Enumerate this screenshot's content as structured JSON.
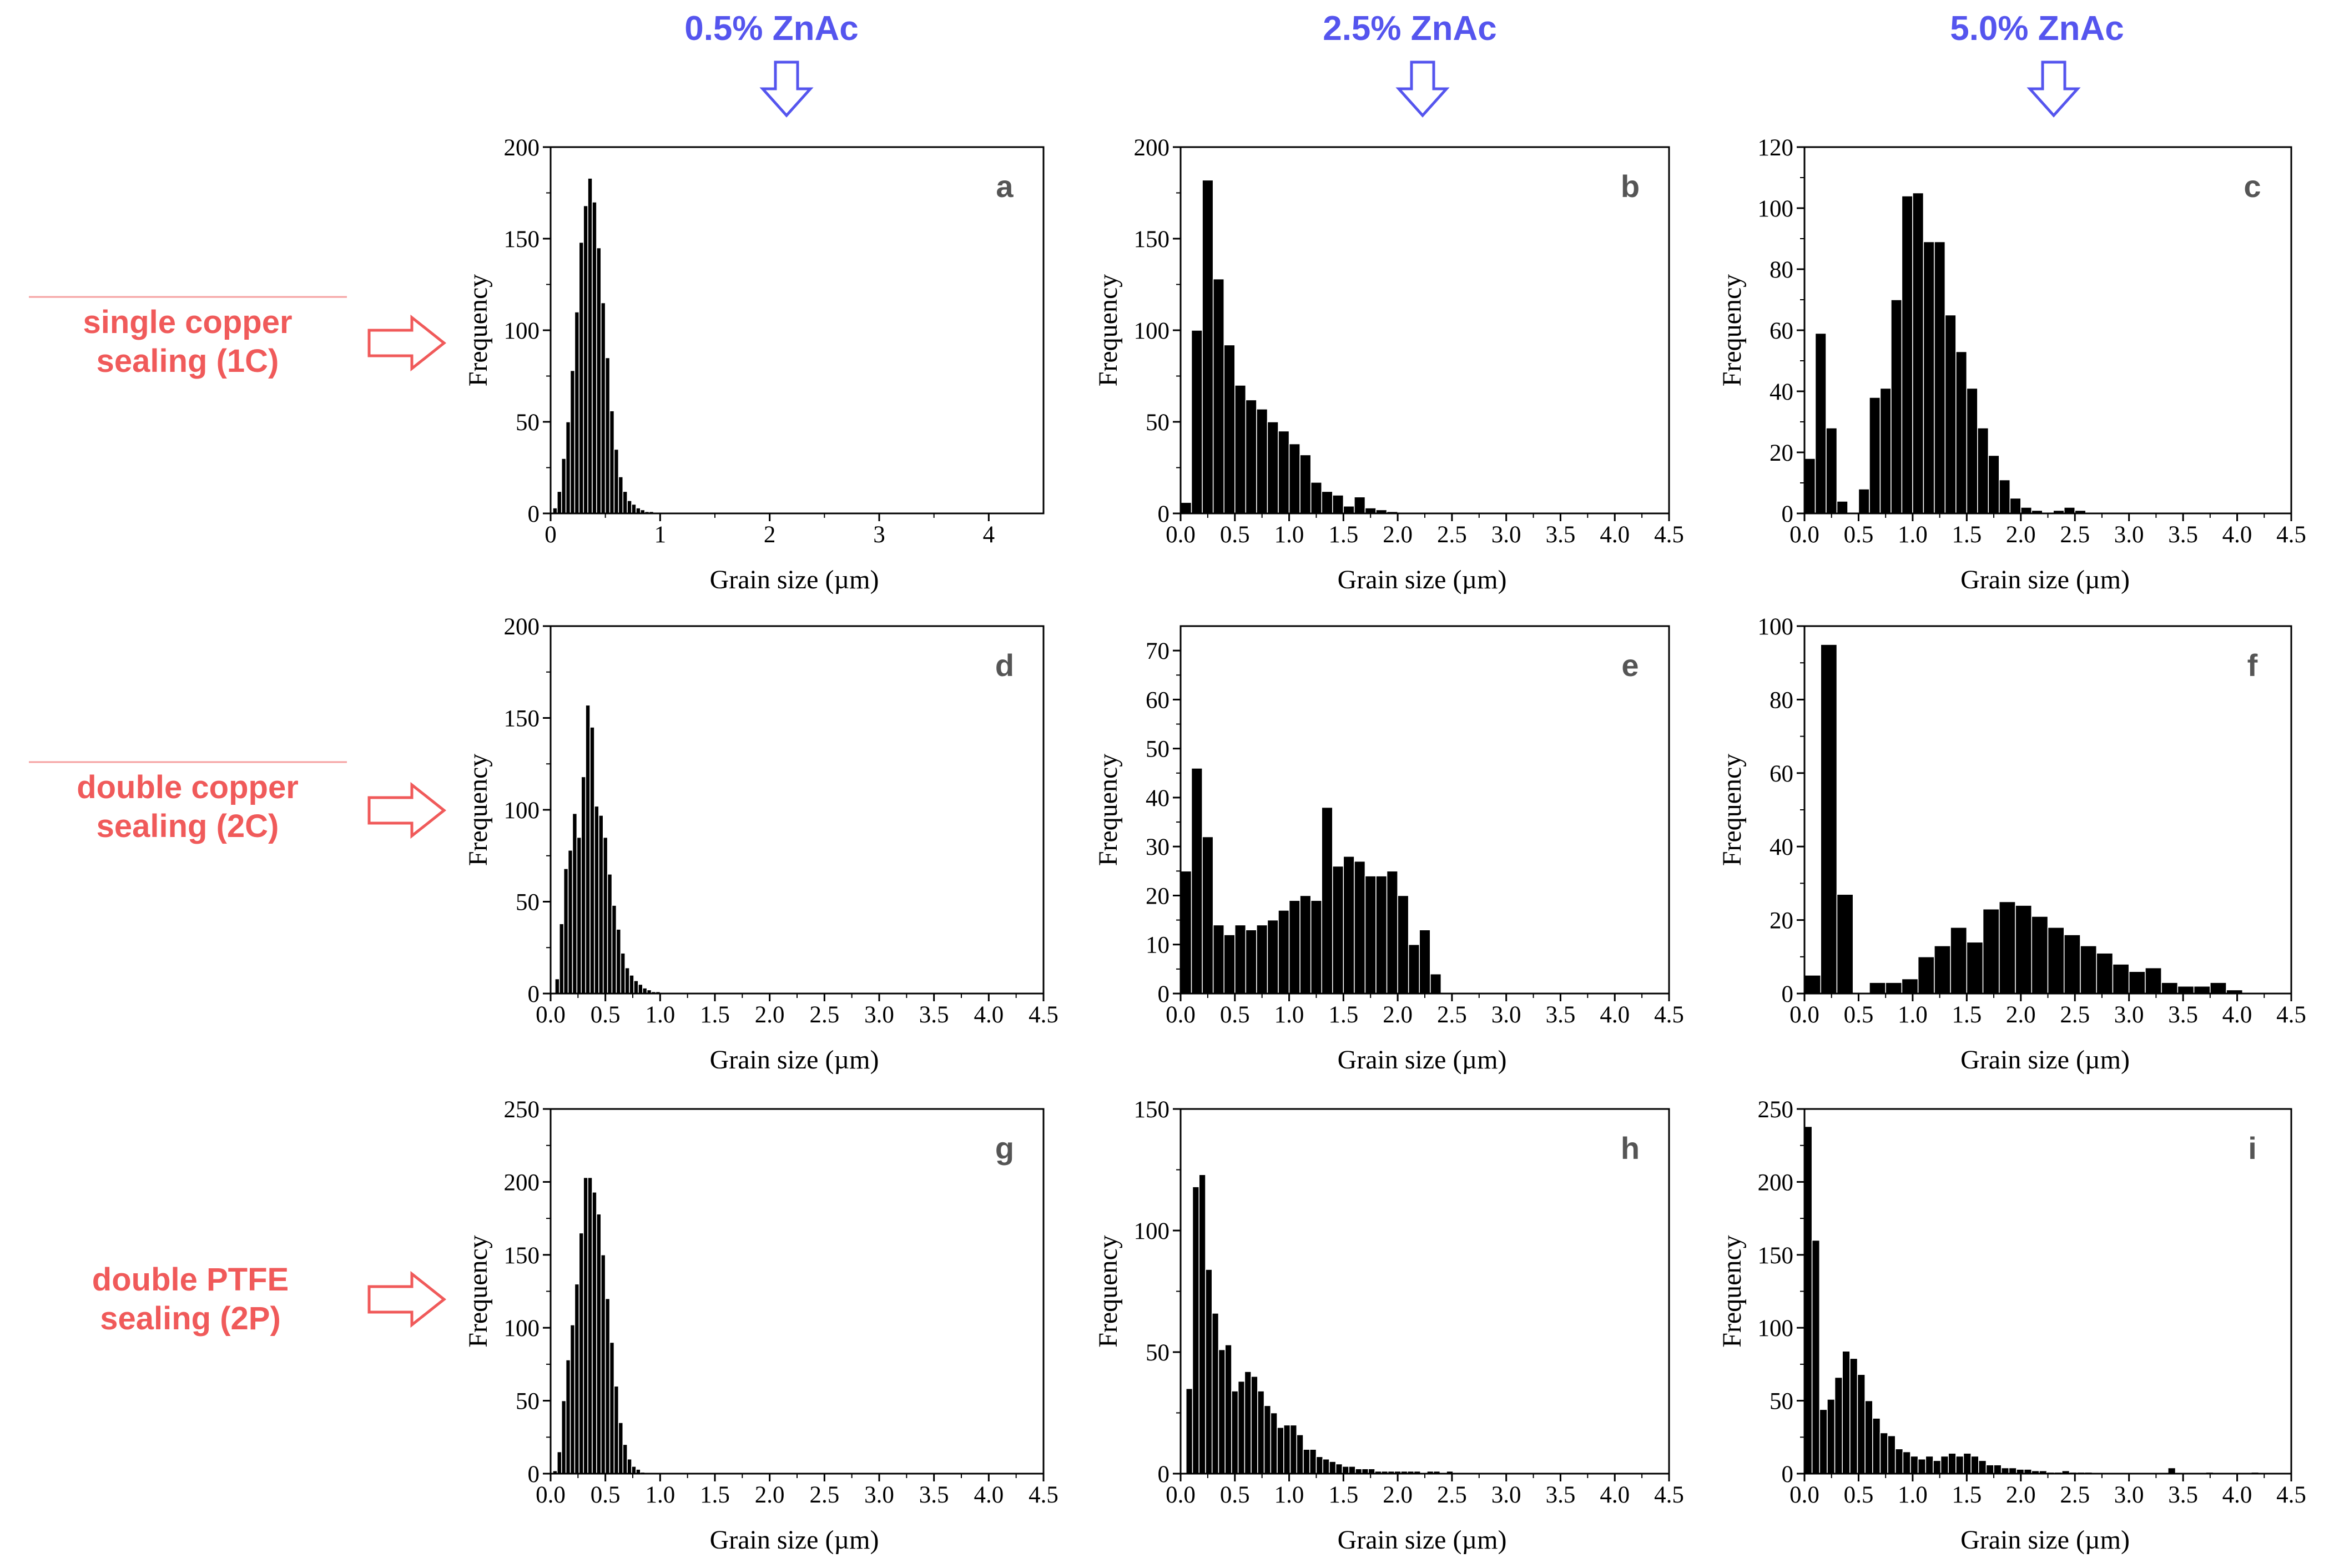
{
  "colors": {
    "column_title": "#5555ee",
    "row_label": "#f05a5a",
    "bars": "#000000",
    "axes": "#000000",
    "panel_letter": "#555555",
    "text": "#000000"
  },
  "column_titles": [
    "0.5% ZnAc",
    "2.5% ZnAc",
    "5.0% ZnAc"
  ],
  "row_labels": [
    {
      "line1": "single copper",
      "line2": "sealing (1C)"
    },
    {
      "line1": "double copper",
      "line2": "sealing (2C)"
    },
    {
      "line1": "double PTFE",
      "line2": "sealing (2P)"
    }
  ],
  "chart_data": [
    {
      "type": "bar",
      "id": "a",
      "letter": "a",
      "xlabel": "Grain size (µm)",
      "ylabel": "Frequency",
      "xlim": [
        0,
        4.5
      ],
      "ylim": [
        0,
        200
      ],
      "xticks": [
        0,
        1,
        2,
        3,
        4
      ],
      "xtick_labels": [
        "0",
        "1",
        "2",
        "3",
        "4"
      ],
      "yticks": [
        0,
        50,
        100,
        150,
        200
      ],
      "ytick_labels": [
        "0",
        "50",
        "100",
        "150",
        "200"
      ],
      "bin_start": 0.02,
      "bin_width": 0.04,
      "values": [
        3,
        12,
        30,
        50,
        78,
        110,
        148,
        168,
        183,
        170,
        145,
        115,
        85,
        56,
        35,
        20,
        12,
        7,
        5,
        3,
        2,
        1,
        1,
        0,
        0,
        0
      ]
    },
    {
      "type": "bar",
      "id": "b",
      "letter": "b",
      "xlabel": "Grain size (µm)",
      "ylabel": "Frequency",
      "xlim": [
        0,
        4.5
      ],
      "ylim": [
        0,
        200
      ],
      "xticks": [
        0,
        0.5,
        1,
        1.5,
        2,
        2.5,
        3,
        3.5,
        4,
        4.5
      ],
      "xtick_labels": [
        "0.0",
        "0.5",
        "1.0",
        "1.5",
        "2.0",
        "2.5",
        "3.0",
        "3.5",
        "4.0",
        "4.5"
      ],
      "yticks": [
        0,
        50,
        100,
        150,
        200
      ],
      "ytick_labels": [
        "0",
        "50",
        "100",
        "150",
        "200"
      ],
      "bin_start": 0.0,
      "bin_width": 0.1,
      "values": [
        6,
        100,
        182,
        128,
        92,
        70,
        62,
        57,
        50,
        45,
        38,
        32,
        17,
        12,
        10,
        4,
        9,
        3,
        2,
        1
      ]
    },
    {
      "type": "bar",
      "id": "c",
      "letter": "c",
      "xlabel": "Grain size (µm)",
      "ylabel": "Frequency",
      "xlim": [
        0,
        4.5
      ],
      "ylim": [
        0,
        120
      ],
      "xticks": [
        0,
        0.5,
        1,
        1.5,
        2,
        2.5,
        3,
        3.5,
        4,
        4.5
      ],
      "xtick_labels": [
        "0.0",
        "0.5",
        "1.0",
        "1.5",
        "2.0",
        "2.5",
        "3.0",
        "3.5",
        "4.0",
        "4.5"
      ],
      "yticks": [
        0,
        20,
        40,
        60,
        80,
        100,
        120
      ],
      "ytick_labels": [
        "0",
        "20",
        "40",
        "60",
        "80",
        "100",
        "120"
      ],
      "bin_start": 0.0,
      "bin_width": 0.1,
      "values": [
        18,
        59,
        28,
        4,
        0,
        8,
        38,
        41,
        70,
        104,
        105,
        89,
        89,
        65,
        53,
        41,
        28,
        19,
        11,
        5,
        2,
        1,
        0,
        1,
        2,
        1,
        0
      ]
    },
    {
      "type": "bar",
      "id": "d",
      "letter": "d",
      "xlabel": "Grain size (µm)",
      "ylabel": "Frequency",
      "xlim": [
        0,
        4.5
      ],
      "ylim": [
        0,
        200
      ],
      "xticks": [
        0,
        0.5,
        1,
        1.5,
        2,
        2.5,
        3,
        3.5,
        4,
        4.5
      ],
      "xtick_labels": [
        "0.0",
        "0.5",
        "1.0",
        "1.5",
        "2.0",
        "2.5",
        "3.0",
        "3.5",
        "4.0",
        "4.5"
      ],
      "yticks": [
        0,
        50,
        100,
        150,
        200
      ],
      "ytick_labels": [
        "0",
        "50",
        "100",
        "150",
        "200"
      ],
      "bin_start": 0.0,
      "bin_width": 0.04,
      "values": [
        0,
        8,
        38,
        68,
        78,
        98,
        85,
        118,
        157,
        145,
        102,
        97,
        85,
        65,
        48,
        35,
        22,
        14,
        10,
        7,
        5,
        3,
        2,
        1,
        1,
        0
      ]
    },
    {
      "type": "bar",
      "id": "e",
      "letter": "e",
      "xlabel": "Grain size (µm)",
      "ylabel": "Frequency",
      "xlim": [
        0,
        4.5
      ],
      "ylim": [
        0,
        75
      ],
      "xticks": [
        0,
        0.5,
        1,
        1.5,
        2,
        2.5,
        3,
        3.5,
        4,
        4.5
      ],
      "xtick_labels": [
        "0.0",
        "0.5",
        "1.0",
        "1.5",
        "2.0",
        "2.5",
        "3.0",
        "3.5",
        "4.0",
        "4.5"
      ],
      "yticks": [
        0,
        10,
        20,
        30,
        40,
        50,
        60,
        70
      ],
      "ytick_labels": [
        "0",
        "10",
        "20",
        "30",
        "40",
        "50",
        "60",
        "70"
      ],
      "bin_start": 0.0,
      "bin_width": 0.1,
      "values": [
        25,
        46,
        32,
        14,
        12,
        14,
        13,
        14,
        15,
        17,
        19,
        20,
        19,
        38,
        26,
        28,
        27,
        24,
        24,
        25,
        20,
        10,
        13,
        4
      ]
    },
    {
      "type": "bar",
      "id": "f",
      "letter": "f",
      "xlabel": "Grain size (µm)",
      "ylabel": "Frequency",
      "xlim": [
        0,
        4.5
      ],
      "ylim": [
        0,
        100
      ],
      "xticks": [
        0,
        0.5,
        1,
        1.5,
        2,
        2.5,
        3,
        3.5,
        4,
        4.5
      ],
      "xtick_labels": [
        "0.0",
        "0.5",
        "1.0",
        "1.5",
        "2.0",
        "2.5",
        "3.0",
        "3.5",
        "4.0",
        "4.5"
      ],
      "yticks": [
        0,
        20,
        40,
        60,
        80,
        100
      ],
      "ytick_labels": [
        "0",
        "20",
        "40",
        "60",
        "80",
        "100"
      ],
      "bin_start": 0.0,
      "bin_width": 0.15,
      "values": [
        5,
        95,
        27,
        0,
        3,
        3,
        4,
        10,
        13,
        18,
        14,
        23,
        25,
        24,
        21,
        18,
        16,
        13,
        11,
        8,
        6,
        7,
        3,
        2,
        2,
        3,
        1
      ]
    },
    {
      "type": "bar",
      "id": "g",
      "letter": "g",
      "xlabel": "Grain size (µm)",
      "ylabel": "Frequency",
      "xlim": [
        0,
        4.5
      ],
      "ylim": [
        0,
        250
      ],
      "xticks": [
        0,
        0.5,
        1,
        1.5,
        2,
        2.5,
        3,
        3.5,
        4,
        4.5
      ],
      "xtick_labels": [
        "0.0",
        "0.5",
        "1.0",
        "1.5",
        "2.0",
        "2.5",
        "3.0",
        "3.5",
        "4.0",
        "4.5"
      ],
      "yticks": [
        0,
        50,
        100,
        150,
        200,
        250
      ],
      "ytick_labels": [
        "0",
        "50",
        "100",
        "150",
        "200",
        "250"
      ],
      "bin_start": 0.02,
      "bin_width": 0.04,
      "values": [
        2,
        15,
        50,
        78,
        102,
        130,
        165,
        203,
        203,
        193,
        178,
        150,
        120,
        90,
        60,
        35,
        20,
        10,
        5,
        3,
        1,
        0
      ]
    },
    {
      "type": "bar",
      "id": "h",
      "letter": "h",
      "xlabel": "Grain size (µm)",
      "ylabel": "Frequency",
      "xlim": [
        0,
        4.5
      ],
      "ylim": [
        0,
        150
      ],
      "xticks": [
        0,
        0.5,
        1,
        1.5,
        2,
        2.5,
        3,
        3.5,
        4,
        4.5
      ],
      "xtick_labels": [
        "0.0",
        "0.5",
        "1.0",
        "1.5",
        "2.0",
        "2.5",
        "3.0",
        "3.5",
        "4.0",
        "4.5"
      ],
      "yticks": [
        0,
        50,
        100,
        150
      ],
      "ytick_labels": [
        "0",
        "50",
        "100",
        "150"
      ],
      "bin_start": 0.05,
      "bin_width": 0.06,
      "values": [
        35,
        118,
        123,
        84,
        66,
        51,
        53,
        34,
        38,
        42,
        40,
        34,
        28,
        25,
        19,
        20,
        20,
        16,
        10,
        10,
        7,
        6,
        5,
        4,
        3,
        3,
        2,
        2,
        2,
        1,
        1,
        1,
        1,
        1,
        1,
        1,
        0,
        1,
        1,
        0,
        1,
        0,
        0,
        0,
        0,
        0,
        0,
        0,
        0,
        0,
        0,
        0,
        0,
        0,
        0,
        0,
        0,
        0
      ]
    },
    {
      "type": "bar",
      "id": "i",
      "letter": "i",
      "xlabel": "Grain size (µm)",
      "ylabel": "Frequency",
      "xlim": [
        0,
        4.5
      ],
      "ylim": [
        0,
        250
      ],
      "xticks": [
        0,
        0.5,
        1,
        1.5,
        2,
        2.5,
        3,
        3.5,
        4,
        4.5
      ],
      "xtick_labels": [
        "0.0",
        "0.5",
        "1.0",
        "1.5",
        "2.0",
        "2.5",
        "3.0",
        "3.5",
        "4.0",
        "4.5"
      ],
      "yticks": [
        0,
        50,
        100,
        150,
        200,
        250
      ],
      "ytick_labels": [
        "0",
        "50",
        "100",
        "150",
        "200",
        "250"
      ],
      "bin_start": 0.0,
      "bin_width": 0.07,
      "values": [
        238,
        160,
        44,
        51,
        66,
        84,
        79,
        68,
        50,
        38,
        28,
        26,
        17,
        15,
        12,
        10,
        12,
        9,
        12,
        14,
        12,
        14,
        12,
        9,
        6,
        6,
        4,
        4,
        3,
        3,
        2,
        2,
        1,
        1,
        2,
        1,
        1,
        1,
        0,
        0,
        0,
        0,
        0,
        0,
        0,
        0,
        0,
        0,
        4,
        0,
        0,
        0,
        0,
        1,
        0,
        0,
        0,
        0,
        0,
        1
      ]
    }
  ]
}
